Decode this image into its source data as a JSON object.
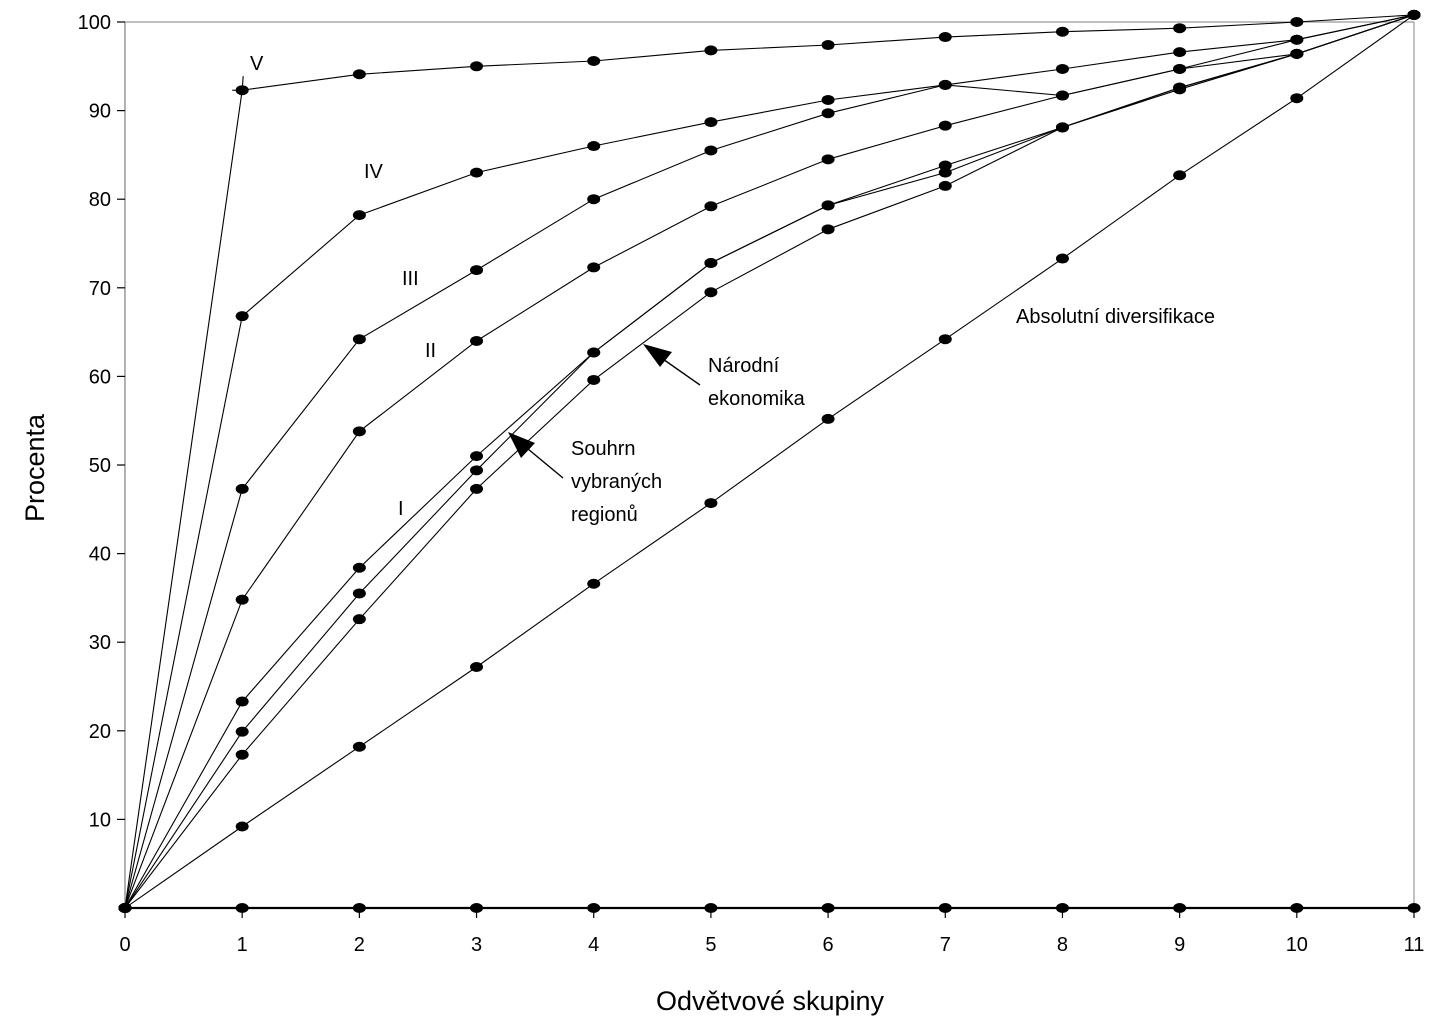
{
  "chart_data": {
    "type": "line",
    "title": "",
    "xlabel": "Odvětvové skupiny",
    "ylabel": "Procenta",
    "xlim": [
      0,
      11
    ],
    "ylim": [
      0,
      100
    ],
    "x_ticks": [
      0,
      1,
      2,
      3,
      4,
      5,
      6,
      7,
      8,
      9,
      10,
      11
    ],
    "y_ticks": [
      10,
      20,
      30,
      40,
      50,
      60,
      70,
      80,
      90,
      100
    ],
    "grid": false,
    "legend": "none",
    "x": [
      0,
      1,
      2,
      3,
      4,
      5,
      6,
      7,
      8,
      9,
      10,
      11
    ],
    "series": [
      {
        "name": "V",
        "values": [
          0,
          92.3,
          94.1,
          95.0,
          95.6,
          96.8,
          97.4,
          98.3,
          98.9,
          99.3,
          100.0,
          100.8
        ]
      },
      {
        "name": "IV",
        "values": [
          0,
          66.8,
          78.2,
          83.0,
          86.0,
          88.7,
          91.2,
          92.9,
          94.7,
          96.6,
          98.0,
          100.8
        ]
      },
      {
        "name": "III",
        "values": [
          0,
          47.3,
          64.2,
          72.0,
          80.0,
          85.5,
          89.7,
          92.9,
          91.7,
          94.7,
          96.4,
          100.8
        ]
      },
      {
        "name": "II",
        "values": [
          0,
          34.8,
          53.8,
          64.0,
          72.3,
          79.2,
          84.5,
          88.3,
          91.7,
          94.7,
          98.0,
          100.8
        ]
      },
      {
        "name": "I",
        "values": [
          0,
          23.3,
          38.4,
          51.0,
          62.7,
          72.8,
          79.3,
          83.8,
          88.1,
          92.6,
          96.4,
          100.8
        ]
      },
      {
        "name": "Souhrn vybraných regionů",
        "values": [
          0,
          19.9,
          35.5,
          49.4,
          62.7,
          72.8,
          79.3,
          83.0,
          88.1,
          92.6,
          96.4,
          100.8
        ]
      },
      {
        "name": "Národní ekonomika",
        "values": [
          0,
          17.3,
          32.6,
          47.3,
          59.6,
          69.5,
          76.6,
          81.5,
          88.1,
          92.4,
          96.4,
          100.8
        ]
      },
      {
        "name": "Absolutní diversifikace",
        "values": [
          0,
          9.2,
          18.2,
          27.2,
          36.6,
          45.7,
          55.2,
          64.2,
          73.3,
          82.7,
          91.4,
          100.8
        ]
      },
      {
        "name": "",
        "values": [
          0,
          0,
          0,
          0,
          0,
          0,
          0,
          0,
          0,
          0,
          0,
          0
        ]
      }
    ],
    "annotations": {
      "V": "V",
      "IV": "IV",
      "III": "III",
      "II": "II",
      "I": "I",
      "absolutni": "Absolutní diversifikace",
      "narodni_1": "Národní",
      "narodni_2": "ekonomika",
      "souhrn_1": "Souhrn",
      "souhrn_2": "vybraných",
      "souhrn_3": "regionů"
    }
  }
}
